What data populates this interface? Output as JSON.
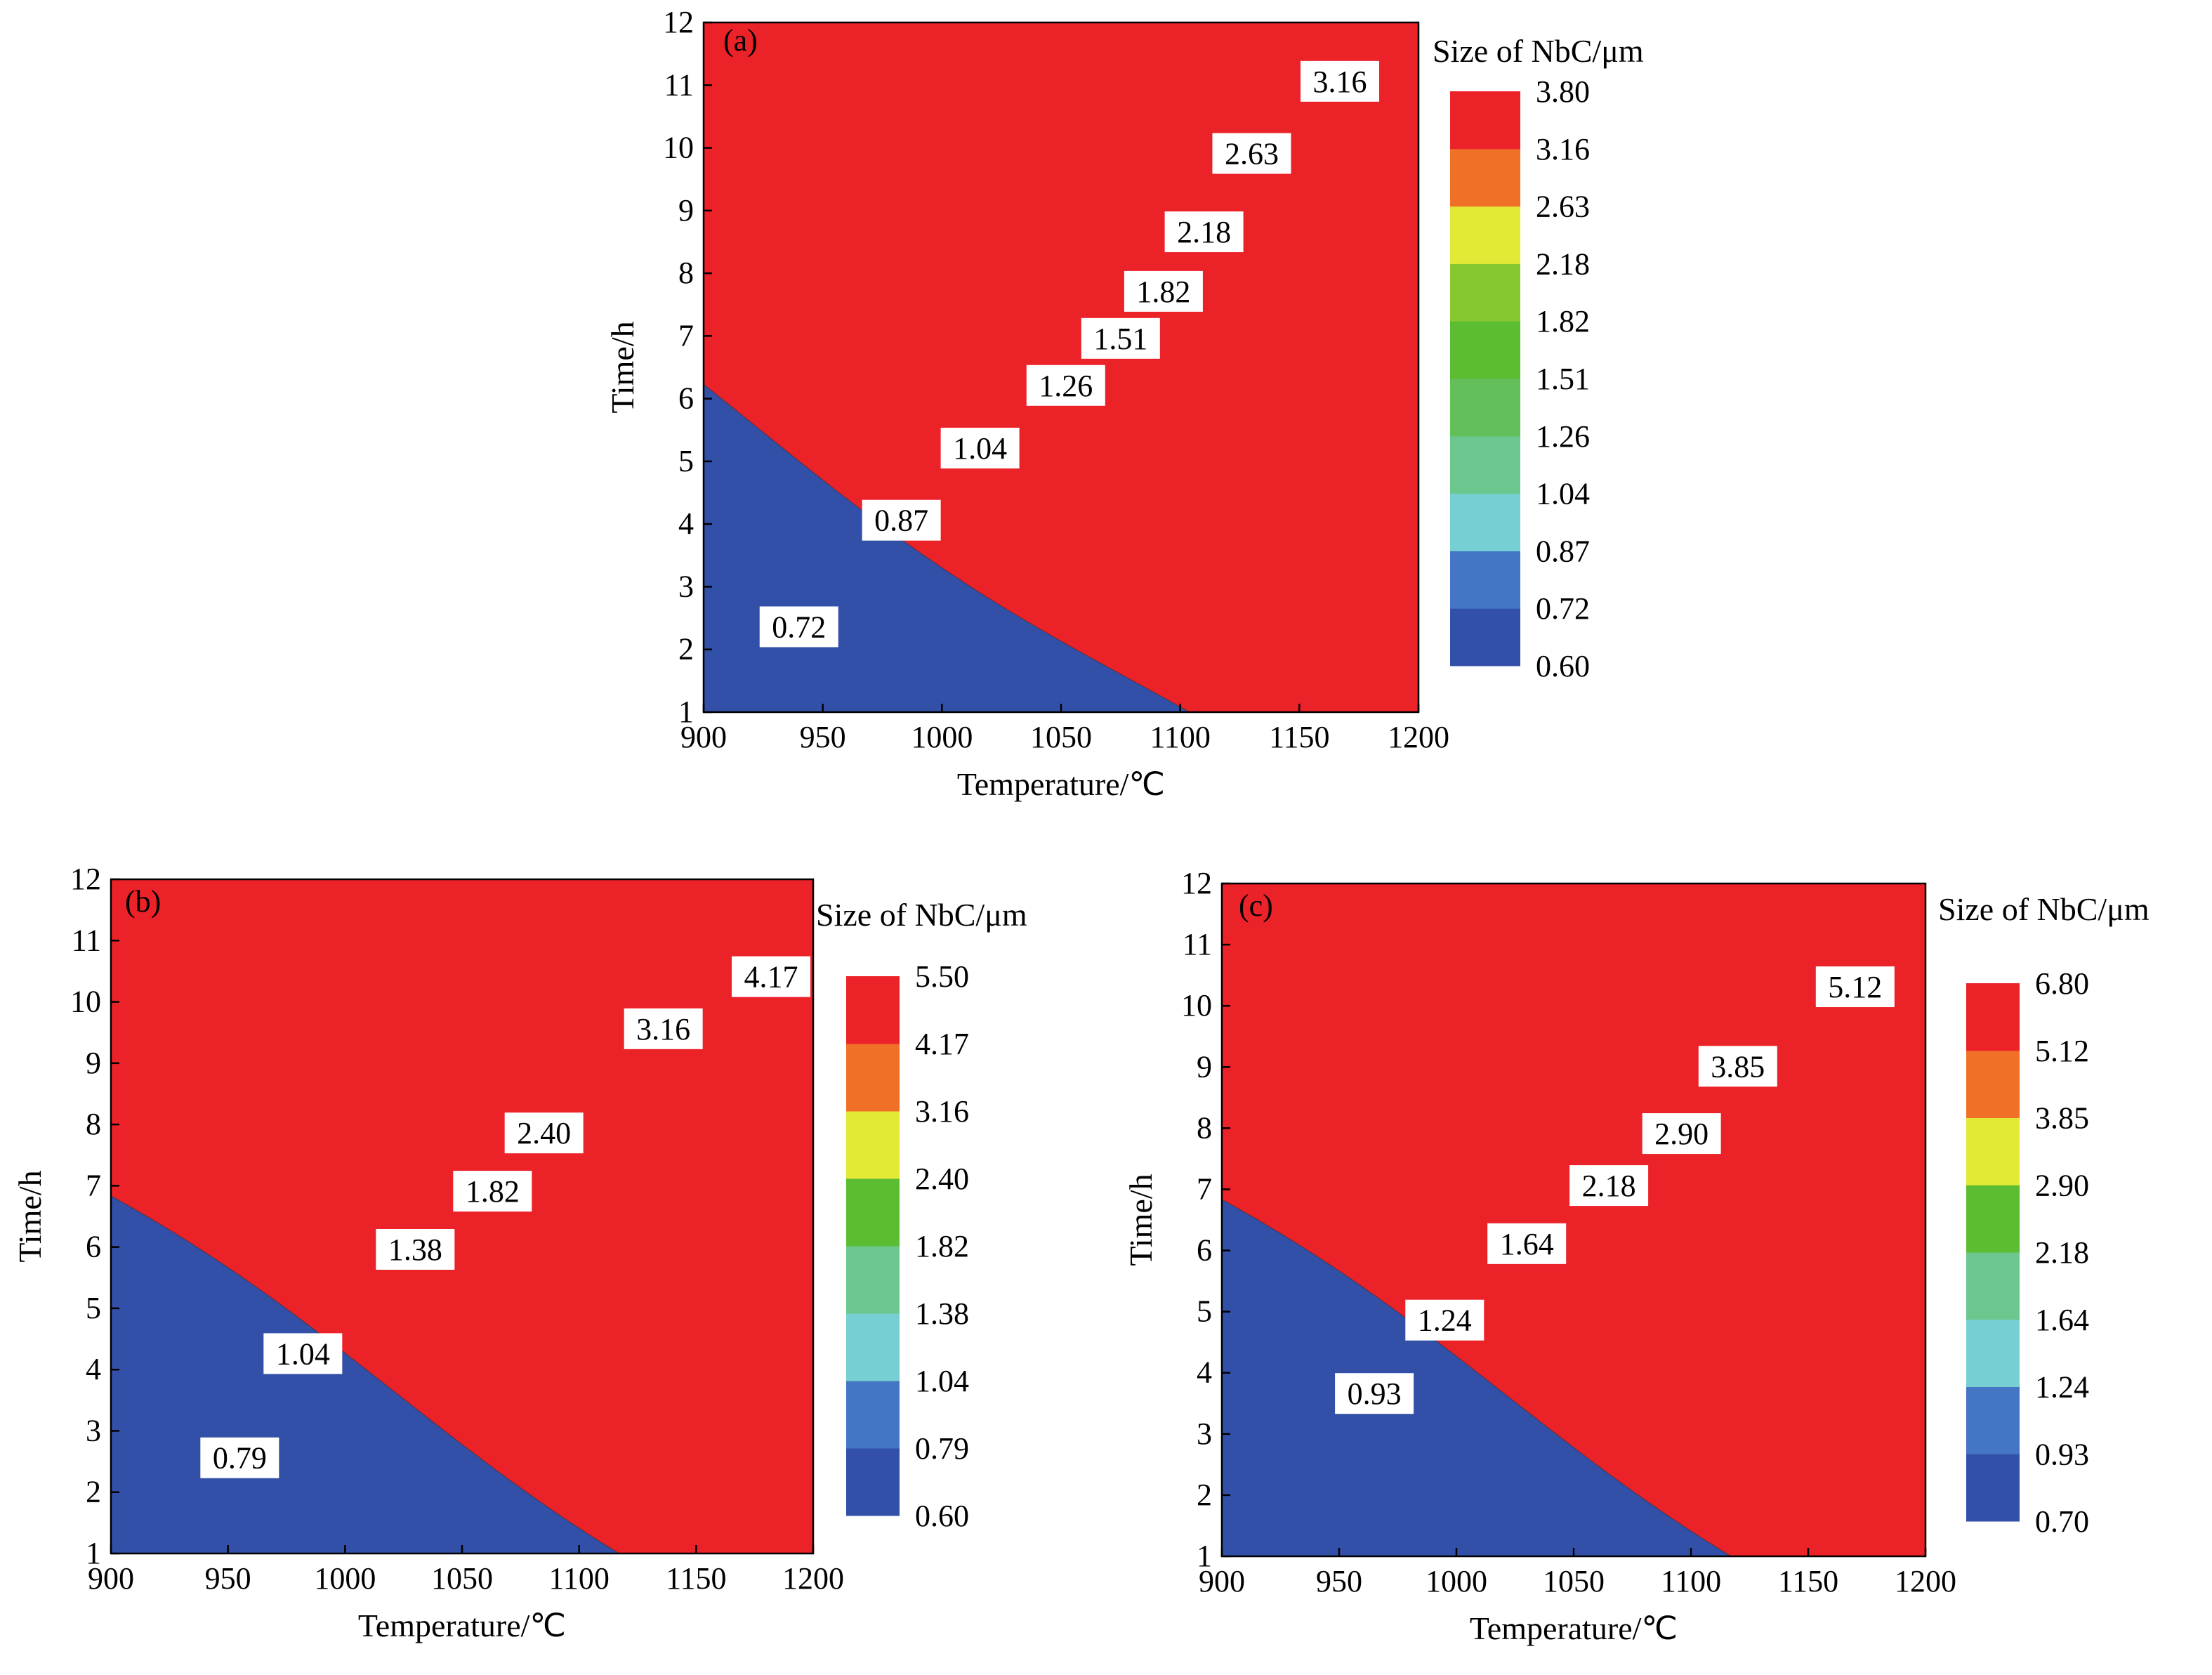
{
  "chart_data": [
    {
      "type": "heatmap",
      "panel_label": "(a)",
      "xlabel": "Temperature/℃",
      "ylabel": "Time/h",
      "xlim": [
        900,
        1200
      ],
      "ylim": [
        1,
        12
      ],
      "x_ticks": [
        "900",
        "950",
        "1000",
        "1050",
        "1100",
        "1150",
        "1200"
      ],
      "y_ticks": [
        "1",
        "2",
        "3",
        "4",
        "5",
        "6",
        "7",
        "8",
        "9",
        "10",
        "11",
        "12"
      ],
      "colorbar": {
        "title": "Size of NbC/μm",
        "levels": [
          "0.60",
          "0.72",
          "0.87",
          "1.04",
          "1.26",
          "1.51",
          "1.82",
          "2.18",
          "2.63",
          "3.16",
          "3.80"
        ],
        "colors": [
          "#3250a8",
          "#4575c5",
          "#76cfd2",
          "#6cc78f",
          "#62bf5a",
          "#5cbd33",
          "#87c830",
          "#e3ea36",
          "#f07027",
          "#ec2229"
        ]
      },
      "contour_labels": [
        {
          "text": "0.72",
          "x": 940,
          "y": 2.35
        },
        {
          "text": "0.87",
          "x": 983,
          "y": 4.05
        },
        {
          "text": "1.04",
          "x": 1016,
          "y": 5.2
        },
        {
          "text": "1.26",
          "x": 1052,
          "y": 6.2
        },
        {
          "text": "1.51",
          "x": 1075,
          "y": 6.95
        },
        {
          "text": "1.82",
          "x": 1093,
          "y": 7.7
        },
        {
          "text": "2.18",
          "x": 1110,
          "y": 8.65
        },
        {
          "text": "2.63",
          "x": 1130,
          "y": 9.9
        },
        {
          "text": "3.16",
          "x": 1167,
          "y": 11.05
        }
      ]
    },
    {
      "type": "heatmap",
      "panel_label": "(b)",
      "xlabel": "Temperature/℃",
      "ylabel": "Time/h",
      "xlim": [
        900,
        1200
      ],
      "ylim": [
        1,
        12
      ],
      "x_ticks": [
        "900",
        "950",
        "1000",
        "1050",
        "1100",
        "1150",
        "1200"
      ],
      "y_ticks": [
        "1",
        "2",
        "3",
        "4",
        "5",
        "6",
        "7",
        "8",
        "9",
        "10",
        "11",
        "12"
      ],
      "colorbar": {
        "title": "Size of NbC/μm",
        "levels": [
          "0.60",
          "0.79",
          "1.04",
          "1.38",
          "1.82",
          "2.40",
          "3.16",
          "4.17",
          "5.50"
        ],
        "colors": [
          "#3250a8",
          "#4575c5",
          "#76cfd2",
          "#6cc78f",
          "#5cbd33",
          "#e3ea36",
          "#f07027",
          "#ec2229"
        ]
      },
      "contour_labels": [
        {
          "text": "0.79",
          "x": 955,
          "y": 2.55
        },
        {
          "text": "1.04",
          "x": 982,
          "y": 4.25
        },
        {
          "text": "1.38",
          "x": 1030,
          "y": 5.95
        },
        {
          "text": "1.82",
          "x": 1063,
          "y": 6.9
        },
        {
          "text": "2.40",
          "x": 1085,
          "y": 7.85
        },
        {
          "text": "3.16",
          "x": 1136,
          "y": 9.55
        },
        {
          "text": "4.17",
          "x": 1182,
          "y": 10.4
        }
      ]
    },
    {
      "type": "heatmap",
      "panel_label": "(c)",
      "xlabel": "Temperature/℃",
      "ylabel": "Time/h",
      "xlim": [
        900,
        1200
      ],
      "ylim": [
        1,
        12
      ],
      "x_ticks": [
        "900",
        "950",
        "1000",
        "1050",
        "1100",
        "1150",
        "1200"
      ],
      "y_ticks": [
        "1",
        "2",
        "3",
        "4",
        "5",
        "6",
        "7",
        "8",
        "9",
        "10",
        "11",
        "12"
      ],
      "colorbar": {
        "title": "Size of NbC/μm",
        "levels": [
          "0.70",
          "0.93",
          "1.24",
          "1.64",
          "2.18",
          "2.90",
          "3.85",
          "5.12",
          "6.80"
        ],
        "colors": [
          "#3250a8",
          "#4575c5",
          "#76cfd2",
          "#6cc78f",
          "#5cbd33",
          "#e3ea36",
          "#f07027",
          "#ec2229"
        ]
      },
      "contour_labels": [
        {
          "text": "0.93",
          "x": 965,
          "y": 3.65
        },
        {
          "text": "1.24",
          "x": 995,
          "y": 4.85
        },
        {
          "text": "1.64",
          "x": 1030,
          "y": 6.1
        },
        {
          "text": "2.18",
          "x": 1065,
          "y": 7.05
        },
        {
          "text": "2.90",
          "x": 1096,
          "y": 7.9
        },
        {
          "text": "3.85",
          "x": 1120,
          "y": 9.0
        },
        {
          "text": "5.12",
          "x": 1170,
          "y": 10.3
        }
      ]
    }
  ]
}
